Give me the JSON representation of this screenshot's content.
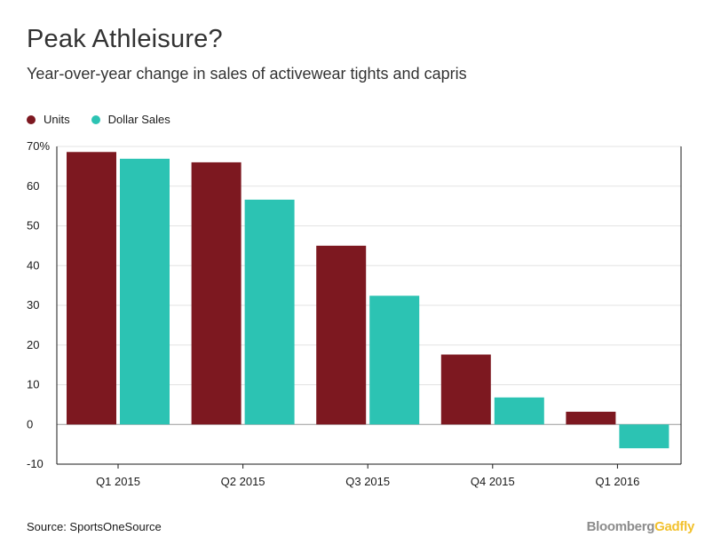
{
  "title": "Peak Athleisure?",
  "subtitle": "Year-over-year change in sales of activewear tights and capris",
  "legend": {
    "units": {
      "label": "Units",
      "color": "#7d1820"
    },
    "dollar": {
      "label": "Dollar Sales",
      "color": "#2cc3b3"
    }
  },
  "source": "Source: SportsOneSource",
  "brand": {
    "part1": "Bloomberg",
    "part2": "Gadfly"
  },
  "chart_data": {
    "type": "bar",
    "categories": [
      "Q1 2015",
      "Q2 2015",
      "Q3 2015",
      "Q4 2015",
      "Q1 2016"
    ],
    "series": [
      {
        "name": "Units",
        "color": "#7d1820",
        "values": [
          68.6,
          66.0,
          45.0,
          17.6,
          3.2
        ]
      },
      {
        "name": "Dollar Sales",
        "color": "#2cc3b3",
        "values": [
          66.9,
          56.6,
          32.4,
          6.8,
          -6.0
        ]
      }
    ],
    "ylim": [
      -10,
      70
    ],
    "yticks": [
      70,
      60,
      50,
      40,
      30,
      20,
      10,
      0,
      -10
    ],
    "ytick_labels": [
      "70%",
      "60",
      "50",
      "40",
      "30",
      "20",
      "10",
      "0",
      "-10"
    ],
    "grid": true,
    "legend_position": "top-left"
  }
}
